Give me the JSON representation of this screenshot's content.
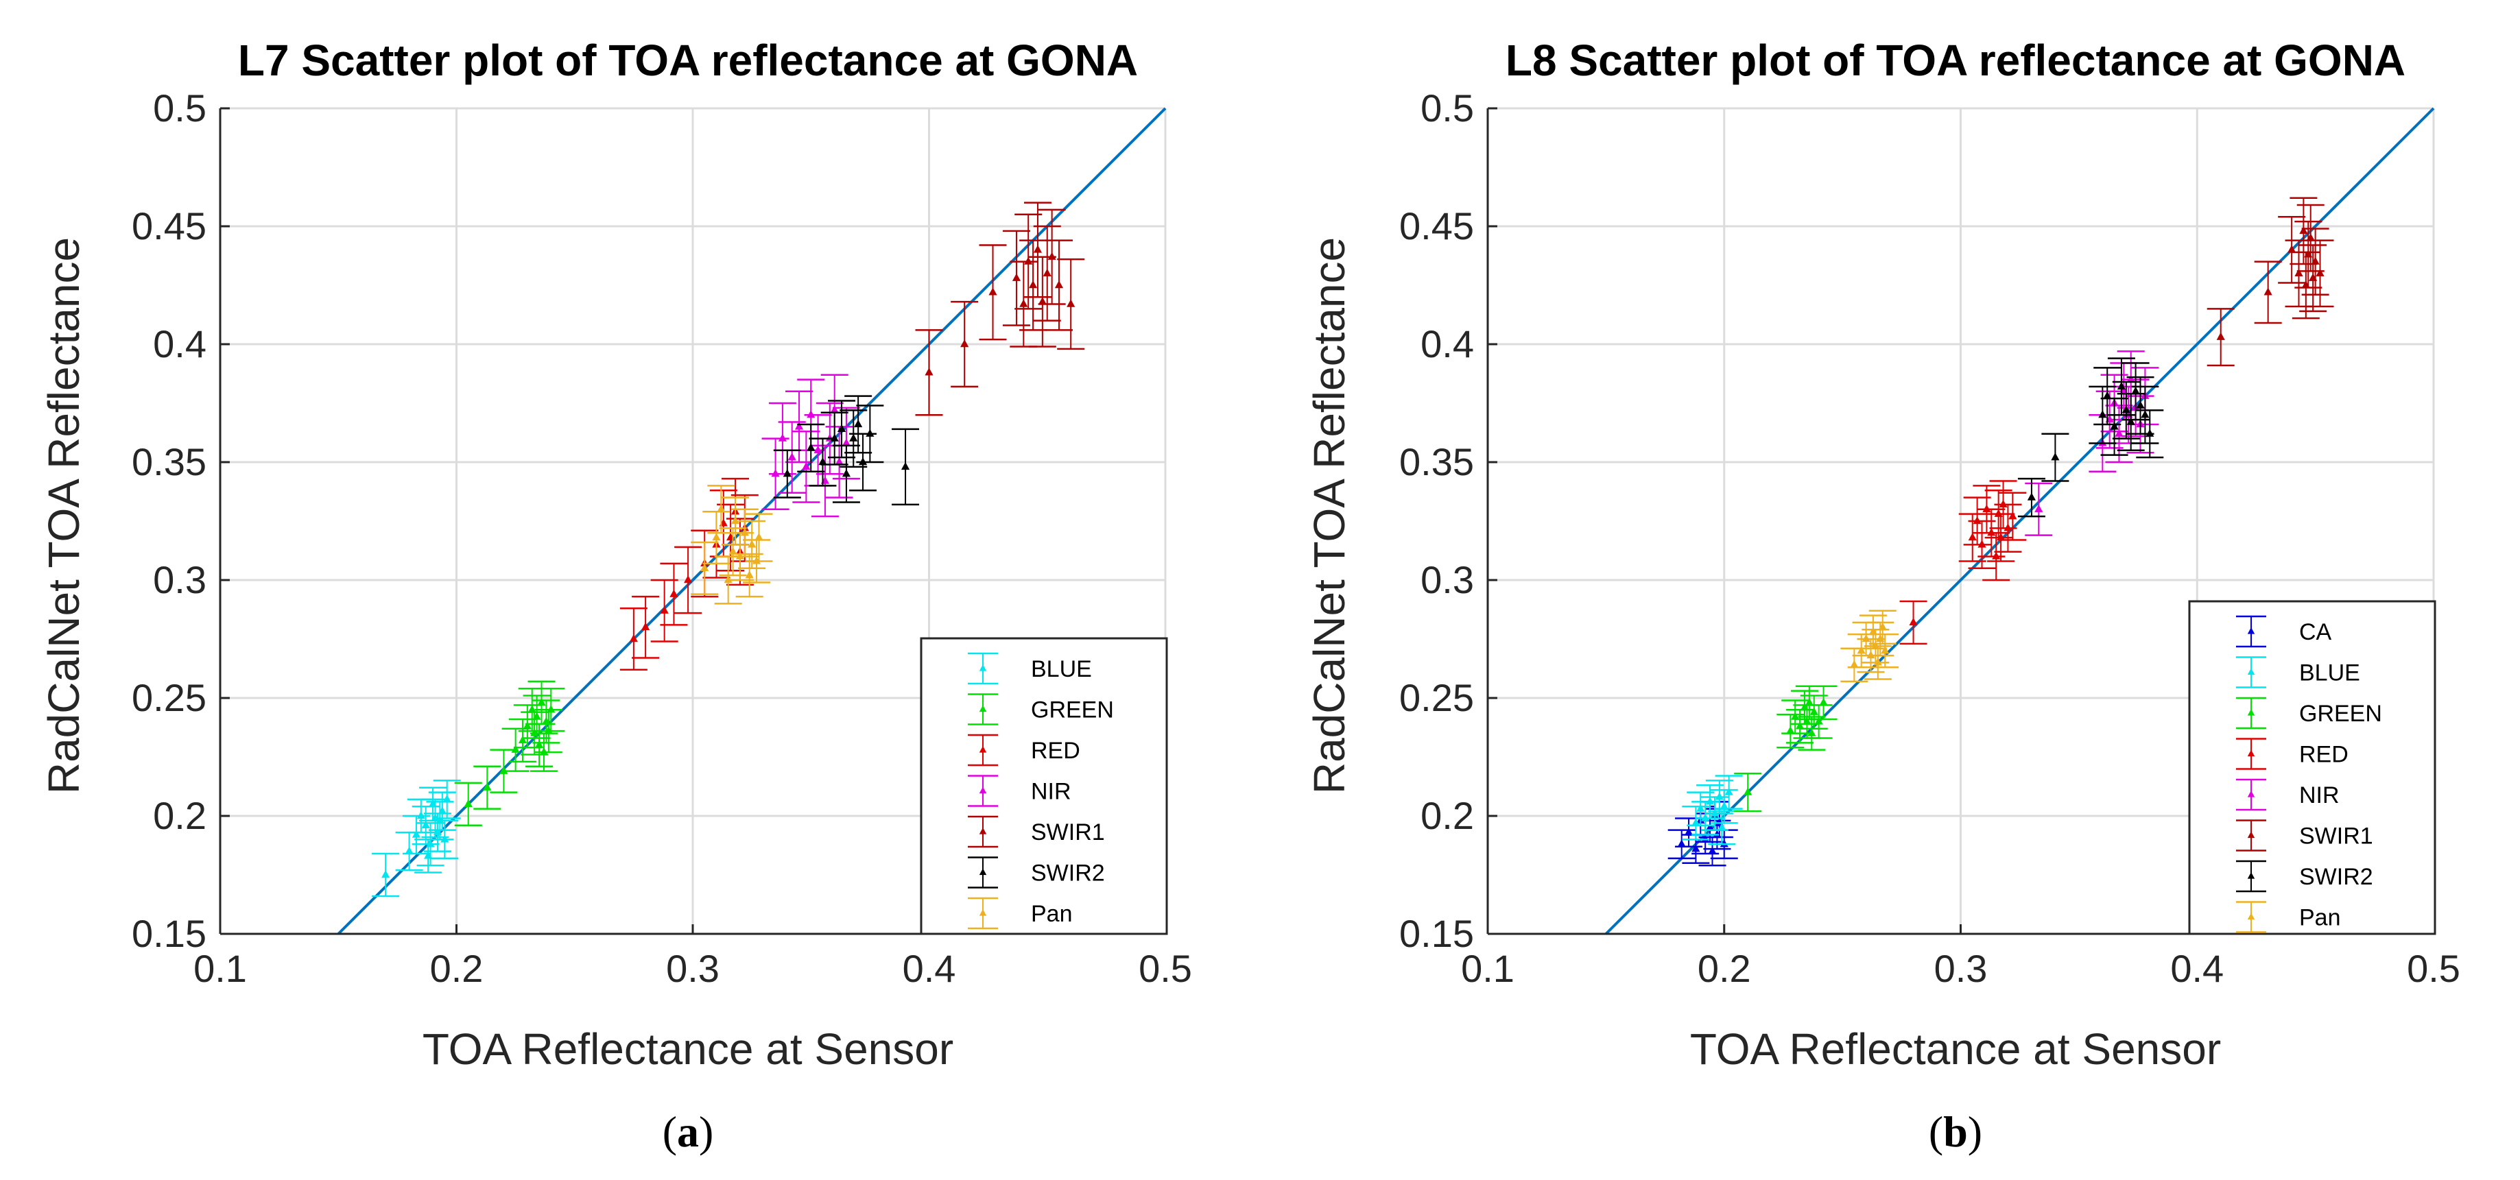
{
  "chart_data": [
    {
      "type": "scatter",
      "title": "L7 Scatter plot of TOA reflectance at GONA",
      "xlabel": "TOA Reflectance at Sensor",
      "ylabel": "RadCalNet TOA Reflectance",
      "xlim": [
        0.1,
        0.5
      ],
      "ylim": [
        0.15,
        0.5
      ],
      "xticks": [
        "0.1",
        "0.2",
        "0.3",
        "0.4",
        "0.5"
      ],
      "yticks": [
        "0.15",
        "0.2",
        "0.25",
        "0.3",
        "0.35",
        "0.4",
        "0.45",
        "0.5"
      ],
      "grid": true,
      "legend_position": "bottom-right",
      "caption_letter": "a",
      "reference_line": {
        "name": "1:1 line",
        "color": "#0072BD",
        "from": [
          0.15,
          0.15
        ],
        "to": [
          0.5,
          0.5
        ]
      },
      "series": [
        {
          "name": "BLUE",
          "color": "#00E5EE",
          "points": [
            [
              0.17,
              0.175,
              0.009
            ],
            [
              0.18,
              0.185,
              0.008
            ],
            [
              0.183,
              0.192,
              0.008
            ],
            [
              0.185,
              0.2,
              0.007
            ],
            [
              0.187,
              0.196,
              0.008
            ],
            [
              0.189,
              0.188,
              0.009
            ],
            [
              0.19,
              0.205,
              0.007
            ],
            [
              0.191,
              0.199,
              0.008
            ],
            [
              0.192,
              0.193,
              0.008
            ],
            [
              0.193,
              0.198,
              0.008
            ],
            [
              0.194,
              0.202,
              0.008
            ],
            [
              0.195,
              0.19,
              0.008
            ],
            [
              0.196,
              0.207,
              0.008
            ],
            [
              0.188,
              0.183,
              0.007
            ]
          ]
        },
        {
          "name": "GREEN",
          "color": "#00E000",
          "points": [
            [
              0.205,
              0.205,
              0.009
            ],
            [
              0.213,
              0.212,
              0.009
            ],
            [
              0.22,
              0.219,
              0.009
            ],
            [
              0.225,
              0.228,
              0.009
            ],
            [
              0.228,
              0.232,
              0.009
            ],
            [
              0.23,
              0.238,
              0.009
            ],
            [
              0.232,
              0.245,
              0.009
            ],
            [
              0.233,
              0.235,
              0.009
            ],
            [
              0.234,
              0.242,
              0.009
            ],
            [
              0.235,
              0.23,
              0.009
            ],
            [
              0.236,
              0.248,
              0.009
            ],
            [
              0.237,
              0.227,
              0.008
            ],
            [
              0.238,
              0.24,
              0.009
            ],
            [
              0.239,
              0.236,
              0.009
            ],
            [
              0.24,
              0.245,
              0.009
            ]
          ]
        },
        {
          "name": "RED",
          "color": "#E00000",
          "points": [
            [
              0.275,
              0.275,
              0.013
            ],
            [
              0.28,
              0.28,
              0.013
            ],
            [
              0.288,
              0.287,
              0.013
            ],
            [
              0.292,
              0.294,
              0.013
            ],
            [
              0.298,
              0.3,
              0.014
            ],
            [
              0.305,
              0.307,
              0.014
            ],
            [
              0.31,
              0.315,
              0.014
            ],
            [
              0.313,
              0.324,
              0.014
            ],
            [
              0.316,
              0.318,
              0.014
            ],
            [
              0.318,
              0.329,
              0.014
            ],
            [
              0.32,
              0.312,
              0.014
            ],
            [
              0.322,
              0.322,
              0.014
            ]
          ]
        },
        {
          "name": "NIR",
          "color": "#E000E0",
          "points": [
            [
              0.335,
              0.345,
              0.015
            ],
            [
              0.338,
              0.36,
              0.015
            ],
            [
              0.342,
              0.352,
              0.015
            ],
            [
              0.345,
              0.365,
              0.015
            ],
            [
              0.348,
              0.348,
              0.015
            ],
            [
              0.35,
              0.37,
              0.015
            ],
            [
              0.353,
              0.355,
              0.015
            ],
            [
              0.356,
              0.342,
              0.015
            ],
            [
              0.358,
              0.36,
              0.015
            ],
            [
              0.36,
              0.372,
              0.015
            ],
            [
              0.362,
              0.35,
              0.015
            ],
            [
              0.365,
              0.358,
              0.015
            ]
          ]
        },
        {
          "name": "SWIR1",
          "color": "#B00000",
          "points": [
            [
              0.4,
              0.388,
              0.018
            ],
            [
              0.415,
              0.4,
              0.018
            ],
            [
              0.427,
              0.422,
              0.02
            ],
            [
              0.437,
              0.428,
              0.02
            ],
            [
              0.44,
              0.417,
              0.018
            ],
            [
              0.442,
              0.435,
              0.02
            ],
            [
              0.444,
              0.425,
              0.019
            ],
            [
              0.446,
              0.44,
              0.02
            ],
            [
              0.448,
              0.418,
              0.019
            ],
            [
              0.45,
              0.43,
              0.02
            ],
            [
              0.452,
              0.437,
              0.02
            ],
            [
              0.455,
              0.425,
              0.019
            ],
            [
              0.46,
              0.417,
              0.019
            ]
          ]
        },
        {
          "name": "SWIR2",
          "color": "#000000",
          "points": [
            [
              0.34,
              0.345,
              0.01
            ],
            [
              0.35,
              0.356,
              0.01
            ],
            [
              0.355,
              0.35,
              0.01
            ],
            [
              0.36,
              0.36,
              0.011
            ],
            [
              0.363,
              0.364,
              0.012
            ],
            [
              0.365,
              0.345,
              0.012
            ],
            [
              0.368,
              0.36,
              0.012
            ],
            [
              0.37,
              0.366,
              0.012
            ],
            [
              0.372,
              0.35,
              0.012
            ],
            [
              0.375,
              0.362,
              0.012
            ],
            [
              0.39,
              0.348,
              0.016
            ]
          ]
        },
        {
          "name": "Pan",
          "color": "#EDB120",
          "points": [
            [
              0.305,
              0.305,
              0.011
            ],
            [
              0.31,
              0.318,
              0.011
            ],
            [
              0.312,
              0.33,
              0.01
            ],
            [
              0.315,
              0.3,
              0.01
            ],
            [
              0.317,
              0.312,
              0.01
            ],
            [
              0.318,
              0.325,
              0.01
            ],
            [
              0.32,
              0.31,
              0.01
            ],
            [
              0.322,
              0.32,
              0.01
            ],
            [
              0.324,
              0.302,
              0.009
            ],
            [
              0.325,
              0.315,
              0.01
            ],
            [
              0.327,
              0.308,
              0.009
            ],
            [
              0.328,
              0.318,
              0.01
            ]
          ]
        }
      ]
    },
    {
      "type": "scatter",
      "title": "L8 Scatter plot of TOA reflectance at GONA",
      "xlabel": "TOA Reflectance at Sensor",
      "ylabel": "RadCalNet TOA Reflectance",
      "xlim": [
        0.1,
        0.5
      ],
      "ylim": [
        0.15,
        0.5
      ],
      "xticks": [
        "0.1",
        "0.2",
        "0.3",
        "0.4",
        "0.5"
      ],
      "yticks": [
        "0.15",
        "0.2",
        "0.25",
        "0.3",
        "0.35",
        "0.4",
        "0.45",
        "0.5"
      ],
      "grid": true,
      "legend_position": "bottom-right",
      "caption_letter": "b",
      "reference_line": {
        "name": "1:1 line",
        "color": "#0072BD",
        "from": [
          0.15,
          0.15
        ],
        "to": [
          0.5,
          0.5
        ]
      },
      "series": [
        {
          "name": "CA",
          "color": "#0000E0",
          "points": [
            [
              0.182,
              0.188,
              0.006
            ],
            [
              0.185,
              0.193,
              0.006
            ],
            [
              0.188,
              0.186,
              0.006
            ],
            [
              0.19,
              0.198,
              0.006
            ],
            [
              0.192,
              0.19,
              0.006
            ],
            [
              0.194,
              0.195,
              0.006
            ],
            [
              0.195,
              0.185,
              0.006
            ],
            [
              0.196,
              0.2,
              0.006
            ],
            [
              0.197,
              0.192,
              0.006
            ],
            [
              0.198,
              0.197,
              0.006
            ],
            [
              0.2,
              0.188,
              0.006
            ]
          ]
        },
        {
          "name": "BLUE",
          "color": "#00E5EE",
          "points": [
            [
              0.188,
              0.197,
              0.007
            ],
            [
              0.19,
              0.203,
              0.007
            ],
            [
              0.192,
              0.199,
              0.007
            ],
            [
              0.194,
              0.206,
              0.007
            ],
            [
              0.196,
              0.201,
              0.007
            ],
            [
              0.198,
              0.208,
              0.007
            ],
            [
              0.2,
              0.204,
              0.007
            ],
            [
              0.202,
              0.21,
              0.007
            ],
            [
              0.199,
              0.195,
              0.007
            ]
          ]
        },
        {
          "name": "GREEN",
          "color": "#00E000",
          "points": [
            [
              0.21,
              0.21,
              0.008
            ],
            [
              0.228,
              0.236,
              0.007
            ],
            [
              0.23,
              0.242,
              0.007
            ],
            [
              0.232,
              0.238,
              0.007
            ],
            [
              0.234,
              0.246,
              0.007
            ],
            [
              0.235,
              0.24,
              0.007
            ],
            [
              0.236,
              0.248,
              0.007
            ],
            [
              0.237,
              0.235,
              0.007
            ],
            [
              0.238,
              0.244,
              0.007
            ],
            [
              0.24,
              0.24,
              0.007
            ],
            [
              0.242,
              0.248,
              0.007
            ]
          ]
        },
        {
          "name": "RED",
          "color": "#E00000",
          "points": [
            [
              0.28,
              0.282,
              0.009
            ],
            [
              0.305,
              0.318,
              0.01
            ],
            [
              0.307,
              0.325,
              0.01
            ],
            [
              0.309,
              0.315,
              0.01
            ],
            [
              0.311,
              0.33,
              0.01
            ],
            [
              0.313,
              0.32,
              0.01
            ],
            [
              0.315,
              0.31,
              0.01
            ],
            [
              0.316,
              0.328,
              0.01
            ],
            [
              0.317,
              0.318,
              0.01
            ],
            [
              0.318,
              0.332,
              0.01
            ],
            [
              0.32,
              0.322,
              0.01
            ],
            [
              0.322,
              0.327,
              0.01
            ]
          ]
        },
        {
          "name": "NIR",
          "color": "#E000E0",
          "points": [
            [
              0.333,
              0.33,
              0.011
            ],
            [
              0.36,
              0.358,
              0.012
            ],
            [
              0.363,
              0.368,
              0.012
            ],
            [
              0.365,
              0.375,
              0.012
            ],
            [
              0.367,
              0.362,
              0.012
            ],
            [
              0.369,
              0.38,
              0.012
            ],
            [
              0.371,
              0.37,
              0.012
            ],
            [
              0.372,
              0.385,
              0.012
            ],
            [
              0.374,
              0.373,
              0.012
            ],
            [
              0.376,
              0.366,
              0.012
            ],
            [
              0.378,
              0.378,
              0.012
            ]
          ]
        },
        {
          "name": "SWIR1",
          "color": "#B00000",
          "points": [
            [
              0.41,
              0.403,
              0.012
            ],
            [
              0.43,
              0.422,
              0.013
            ],
            [
              0.44,
              0.44,
              0.014
            ],
            [
              0.443,
              0.43,
              0.014
            ],
            [
              0.445,
              0.448,
              0.014
            ],
            [
              0.446,
              0.425,
              0.014
            ],
            [
              0.447,
              0.438,
              0.014
            ],
            [
              0.448,
              0.445,
              0.014
            ],
            [
              0.449,
              0.428,
              0.014
            ],
            [
              0.45,
              0.435,
              0.014
            ],
            [
              0.452,
              0.43,
              0.014
            ]
          ]
        },
        {
          "name": "SWIR2",
          "color": "#000000",
          "points": [
            [
              0.33,
              0.335,
              0.008
            ],
            [
              0.34,
              0.352,
              0.01
            ],
            [
              0.36,
              0.37,
              0.012
            ],
            [
              0.362,
              0.378,
              0.012
            ],
            [
              0.365,
              0.365,
              0.012
            ],
            [
              0.368,
              0.382,
              0.012
            ],
            [
              0.37,
              0.372,
              0.012
            ],
            [
              0.372,
              0.367,
              0.012
            ],
            [
              0.374,
              0.38,
              0.012
            ],
            [
              0.376,
              0.374,
              0.012
            ],
            [
              0.378,
              0.37,
              0.012
            ],
            [
              0.38,
              0.362,
              0.01
            ]
          ]
        },
        {
          "name": "Pan",
          "color": "#EDB120",
          "points": [
            [
              0.255,
              0.264,
              0.007
            ],
            [
              0.258,
              0.27,
              0.007
            ],
            [
              0.26,
              0.275,
              0.007
            ],
            [
              0.262,
              0.268,
              0.007
            ],
            [
              0.263,
              0.278,
              0.007
            ],
            [
              0.264,
              0.272,
              0.007
            ],
            [
              0.265,
              0.265,
              0.007
            ],
            [
              0.266,
              0.275,
              0.007
            ],
            [
              0.267,
              0.28,
              0.007
            ],
            [
              0.268,
              0.27,
              0.007
            ]
          ]
        }
      ]
    }
  ]
}
